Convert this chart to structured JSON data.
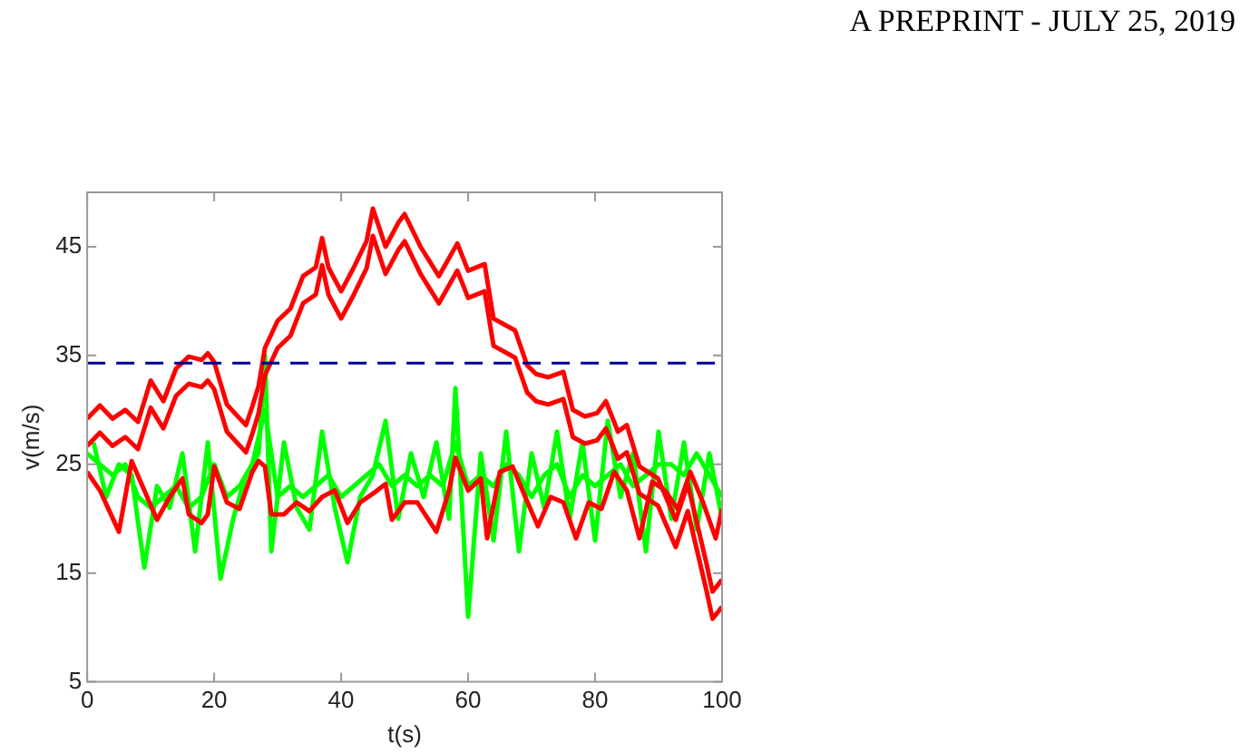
{
  "chart_data": {
    "type": "line",
    "xlabel": "t(s)",
    "ylabel": "v(m/s)",
    "annotations": [
      "A PREPRINT - JULY 25, 2019"
    ],
    "xlim": [
      0,
      100
    ],
    "xticks": [
      0,
      20,
      40,
      60,
      80,
      100
    ],
    "ylim": [
      5,
      50
    ],
    "yticks": [
      5,
      15,
      25,
      35,
      45
    ],
    "grid": false,
    "legend": false,
    "marker": "none",
    "line_style": "solid",
    "ref_lines": [
      {
        "axis": "y",
        "value": 34.3,
        "color": "#000099",
        "line_style": "dashed"
      }
    ],
    "series": [
      {
        "color": "#00ff00",
        "x": [
          1,
          3,
          5,
          7,
          9,
          11,
          13,
          15,
          17,
          19,
          21,
          23,
          25,
          27,
          28,
          29,
          31,
          33,
          35,
          37,
          39,
          41,
          43,
          45,
          47,
          49,
          51,
          53,
          55,
          57,
          58,
          60,
          62,
          64,
          66,
          68,
          70,
          72,
          74,
          76,
          78,
          80,
          82,
          84,
          86,
          88,
          90,
          92,
          94,
          96,
          98,
          100
        ],
        "values": [
          27,
          22,
          25,
          24,
          15.5,
          23,
          21,
          26,
          17,
          27,
          14.5,
          20,
          24,
          26,
          35,
          17,
          27,
          21,
          19,
          28,
          21,
          16,
          22,
          24,
          29,
          20,
          26,
          22,
          27,
          20,
          32,
          11,
          26,
          18,
          28,
          17,
          26,
          21,
          28,
          20,
          27,
          18,
          29,
          22,
          26,
          17,
          28,
          20,
          27,
          19,
          26,
          20
        ]
      },
      {
        "color": "#00ff00",
        "x": [
          0,
          2,
          4,
          6,
          8,
          10,
          12,
          14,
          16,
          18,
          20,
          22,
          24,
          26,
          28,
          30,
          32,
          34,
          36,
          38,
          40,
          42,
          44,
          46,
          48,
          50,
          52,
          54,
          56,
          58,
          60,
          62,
          64,
          66,
          68,
          70,
          72,
          74,
          76,
          78,
          80,
          82,
          84,
          86,
          88,
          90,
          92,
          94,
          96,
          98,
          100
        ],
        "values": [
          26,
          25,
          24,
          25,
          22,
          21,
          22,
          23,
          21,
          22,
          25,
          22,
          23,
          25,
          30,
          22,
          23,
          22,
          23,
          24,
          22,
          23,
          24,
          25,
          23,
          24,
          23,
          24,
          23,
          27,
          23,
          24,
          23,
          25,
          24,
          22,
          24,
          25,
          22,
          24,
          23,
          24,
          25,
          23,
          24,
          25,
          25,
          24,
          26,
          24,
          22
        ]
      },
      {
        "color": "#ff0000",
        "x": [
          0,
          2,
          5,
          7,
          9,
          11,
          13,
          15,
          16,
          18,
          19,
          20,
          22,
          24,
          26,
          27,
          28,
          29,
          31,
          33,
          35,
          37,
          39,
          41,
          43,
          45,
          47,
          48,
          50,
          52,
          55,
          57,
          58,
          60,
          62,
          63,
          65,
          67,
          69,
          71,
          73,
          75,
          77,
          79,
          81,
          83,
          85,
          87,
          89,
          91,
          93,
          95,
          97,
          99,
          100
        ],
        "values": [
          24.3,
          22.6,
          18.8,
          25.3,
          22.6,
          19.9,
          22,
          23.7,
          20.4,
          19.6,
          20.4,
          24.8,
          21.5,
          20.9,
          24.3,
          25.3,
          24.8,
          20.4,
          20.4,
          21.5,
          20.7,
          22,
          22.6,
          19.6,
          21.5,
          22.3,
          23.2,
          19.9,
          21.5,
          21.5,
          18.8,
          22.6,
          25.6,
          22.6,
          23.7,
          18.2,
          24.3,
          24.8,
          22,
          19.3,
          22,
          21.5,
          18.2,
          21.5,
          20.9,
          24.3,
          22.6,
          18.2,
          23.4,
          22.6,
          20.9,
          24.3,
          21.5,
          18.2,
          20.9
        ]
      },
      {
        "color": "#ff0000",
        "x": [
          0,
          2,
          4,
          6,
          8,
          10,
          12,
          14,
          16,
          18,
          19,
          20,
          22,
          25,
          26,
          27,
          28,
          30,
          32,
          34,
          36,
          37,
          38,
          40,
          42,
          44,
          45,
          47,
          49,
          50,
          52.5,
          55.4,
          58.3,
          60,
          62.6,
          64,
          67.4,
          69.3,
          70.7,
          72.6,
          75,
          76.5,
          78.4,
          80.3,
          81.7,
          83.6,
          85,
          87,
          89.9,
          92.7,
          94.6,
          97.5,
          98.5,
          100
        ],
        "values": [
          29.2,
          30.4,
          29.2,
          30,
          28.9,
          32.7,
          30.8,
          33.8,
          34.9,
          34.6,
          35.2,
          34.4,
          30.5,
          28.6,
          30.3,
          32.2,
          35.7,
          38.2,
          39.3,
          42.3,
          43.1,
          45.8,
          43.1,
          40.9,
          43.1,
          45.5,
          48.5,
          45,
          47.2,
          48,
          45,
          42.3,
          45.3,
          42.8,
          43.4,
          38.4,
          37.3,
          34.1,
          33.3,
          33,
          33.5,
          30,
          29.4,
          29.7,
          30.8,
          28,
          28.6,
          24.8,
          23.7,
          19.9,
          23.2,
          16,
          13.3,
          14.4
        ]
      },
      {
        "color": "#ff0000",
        "x": [
          0,
          2,
          4,
          6,
          8,
          10,
          12,
          14,
          16,
          18,
          19,
          20,
          22,
          25,
          26,
          27,
          28,
          30,
          32,
          34,
          36,
          37,
          38,
          40,
          42,
          44,
          45,
          47,
          49,
          50,
          52.5,
          55.4,
          58.3,
          60,
          62.6,
          64,
          67.4,
          69.3,
          70.7,
          72.6,
          75,
          76.5,
          78.4,
          80.3,
          81.7,
          83.6,
          85,
          87,
          89.9,
          92.7,
          94.6,
          97.5,
          98.5,
          100
        ],
        "values": [
          26.7,
          27.9,
          26.7,
          27.5,
          26.4,
          30.2,
          28.3,
          31.3,
          32.4,
          32.1,
          32.7,
          31.9,
          28,
          26.1,
          27.8,
          29.7,
          33.2,
          35.7,
          36.8,
          39.8,
          40.6,
          43.3,
          40.6,
          38.4,
          40.6,
          43,
          46,
          42.5,
          44.7,
          45.5,
          42.5,
          39.8,
          42.8,
          40.3,
          40.9,
          35.9,
          34.8,
          31.6,
          30.8,
          30.5,
          31,
          27.5,
          26.9,
          27.2,
          28.3,
          25.5,
          26.1,
          22.3,
          21.2,
          17.4,
          20.7,
          13.5,
          10.8,
          11.9
        ]
      }
    ]
  }
}
